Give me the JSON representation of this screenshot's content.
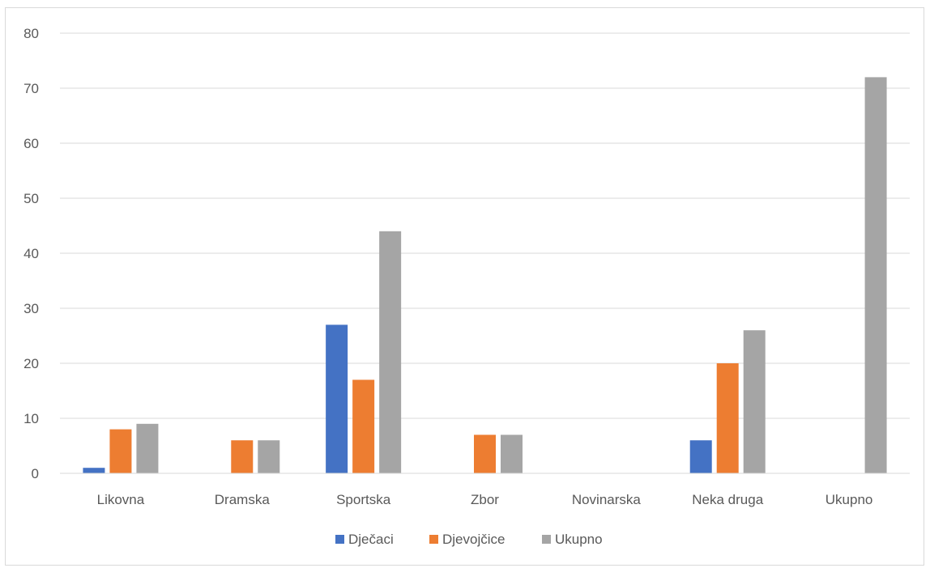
{
  "chart_data": {
    "type": "bar",
    "title": "",
    "xlabel": "",
    "ylabel": "",
    "categories": [
      "Likovna",
      "Dramska",
      "Sportska",
      "Zbor",
      "Novinarska",
      "Neka druga",
      "Ukupno"
    ],
    "series": [
      {
        "name": "Dječaci",
        "color": "#4472c4",
        "values": [
          1,
          0,
          27,
          0,
          0,
          6,
          0
        ]
      },
      {
        "name": "Djevojčice",
        "color": "#ed7d31",
        "values": [
          8,
          6,
          17,
          7,
          0,
          20,
          0
        ]
      },
      {
        "name": "Ukupno",
        "color": "#a5a5a5",
        "values": [
          9,
          6,
          44,
          7,
          0,
          26,
          72
        ]
      }
    ],
    "ylim": [
      0,
      80
    ],
    "yticks": [
      0,
      10,
      20,
      30,
      40,
      50,
      60,
      70,
      80
    ],
    "grid": true,
    "legend_position": "bottom"
  }
}
